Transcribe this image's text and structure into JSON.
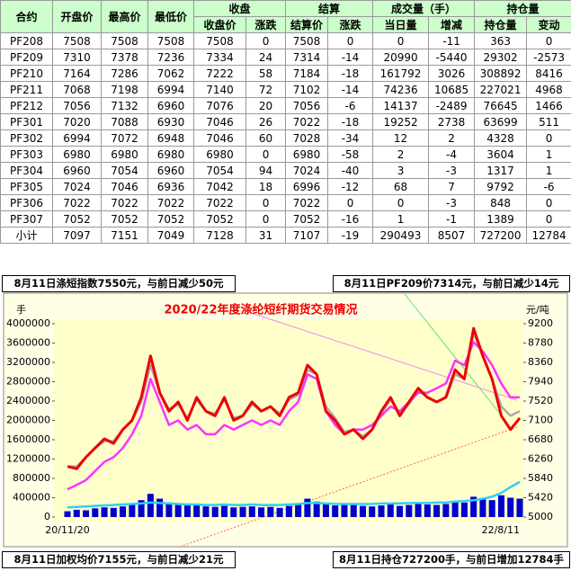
{
  "table": {
    "top": [
      "合约",
      "开盘价",
      "最高价",
      "最低价",
      "收盘",
      "结算",
      "成交量（手）",
      "持仓量"
    ],
    "sub": [
      "收盘价",
      "涨跌",
      "结算价",
      "涨跌",
      "当日量",
      "增减",
      "持仓量",
      "变动"
    ],
    "rows": [
      [
        "PF208",
        7508,
        7508,
        7508,
        7508,
        0,
        7508,
        0,
        0,
        -11,
        363,
        0
      ],
      [
        "PF209",
        7310,
        7378,
        7236,
        7334,
        24,
        7314,
        -14,
        20990,
        -5440,
        29302,
        -2573
      ],
      [
        "PF210",
        7164,
        7286,
        7062,
        7222,
        58,
        7184,
        -18,
        161792,
        3026,
        308892,
        8416
      ],
      [
        "PF211",
        7068,
        7198,
        6994,
        7140,
        72,
        7102,
        -14,
        74236,
        10685,
        227021,
        4968
      ],
      [
        "PF212",
        7056,
        7132,
        6960,
        7076,
        20,
        7056,
        -6,
        14137,
        -2489,
        76645,
        1466
      ],
      [
        "PF301",
        7020,
        7088,
        6930,
        7046,
        26,
        7022,
        -18,
        19252,
        2738,
        63699,
        511
      ],
      [
        "PF302",
        6994,
        7072,
        6948,
        7046,
        60,
        7028,
        -34,
        12,
        2,
        4328,
        0
      ],
      [
        "PF303",
        6980,
        6980,
        6980,
        6980,
        0,
        6980,
        -58,
        2,
        -4,
        3604,
        1
      ],
      [
        "PF304",
        6960,
        7054,
        6960,
        7054,
        94,
        7024,
        -40,
        3,
        -3,
        1317,
        1
      ],
      [
        "PF305",
        7024,
        7046,
        6936,
        7042,
        18,
        6996,
        -12,
        68,
        7,
        9792,
        -6
      ],
      [
        "PF306",
        7022,
        7022,
        7022,
        7022,
        0,
        7022,
        0,
        0,
        -3,
        848,
        0
      ],
      [
        "PF307",
        7052,
        7052,
        7052,
        7052,
        0,
        7052,
        -16,
        1,
        -1,
        1389,
        0
      ],
      [
        "小计",
        7097,
        7151,
        7049,
        7128,
        31,
        7107,
        -19,
        290493,
        8507,
        727200,
        12784
      ]
    ]
  },
  "notes": [
    "8月11日涤短指数7550元，与前日减少50元",
    "8月11日PF209价7314元，与前日减少14元",
    "8月11日加权均价7155元，与前日减少21元",
    "8月11日持仓727200手，与前日增加12784手"
  ],
  "chart_data": {
    "type": "line",
    "title": "2020/22年度涤纶短纤期货交易情况",
    "ylabel": "手",
    "y2label": "元/吨",
    "categories": [
      "20/11/20",
      null,
      null,
      null,
      null,
      null,
      null,
      null,
      null,
      null,
      null,
      null,
      null,
      null,
      null,
      null,
      null,
      null,
      null,
      null,
      null,
      null,
      null,
      null,
      null,
      null,
      null,
      null,
      null,
      null,
      null,
      null,
      null,
      null,
      null,
      null,
      null,
      null,
      null,
      null,
      null,
      null,
      null,
      null,
      null,
      null,
      null,
      null,
      null,
      "22/8/11"
    ],
    "ylim": [
      0,
      4000000
    ],
    "yticks": [
      0,
      400000,
      800000,
      1200000,
      1600000,
      2000000,
      2400000,
      2800000,
      3200000,
      3600000,
      4000000
    ],
    "y2lim": [
      5000,
      9200
    ],
    "y2ticks": [
      5000,
      5420,
      5840,
      6260,
      6680,
      7100,
      7520,
      7940,
      8360,
      8780,
      9200
    ],
    "series": [
      {
        "type": "bar",
        "color": "#0000cc",
        "values": [
          120000,
          150000,
          140000,
          180000,
          200000,
          190000,
          220000,
          260000,
          350000,
          480000,
          380000,
          300000,
          260000,
          240000,
          250000,
          220000,
          210000,
          230000,
          200000,
          210000,
          220000,
          200000,
          210000,
          190000,
          230000,
          260000,
          380000,
          320000,
          260000,
          240000,
          280000,
          250000,
          230000,
          220000,
          240000,
          260000,
          230000,
          250000,
          280000,
          260000,
          250000,
          270000,
          330000,
          300000,
          420000,
          380000,
          350000,
          450000,
          400000,
          380000
        ]
      },
      {
        "color": "#33ccff",
        "values": [
          200000,
          210000,
          220000,
          230000,
          240000,
          250000,
          260000,
          270000,
          280000,
          300000,
          290000,
          280000,
          270000,
          260000,
          260000,
          250000,
          250000,
          260000,
          250000,
          250000,
          260000,
          250000,
          250000,
          250000,
          260000,
          270000,
          290000,
          290000,
          280000,
          270000,
          270000,
          270000,
          270000,
          270000,
          280000,
          280000,
          280000,
          290000,
          290000,
          290000,
          300000,
          300000,
          320000,
          330000,
          350000,
          380000,
          420000,
          500000,
          620000,
          727200
        ]
      },
      {
        "axis": "y2",
        "color": "#aaaaaa",
        "values": [
          6100,
          6100,
          6300,
          6500,
          6650,
          6650,
          6900,
          7100,
          7500,
          8300,
          7700,
          7350,
          7450,
          7150,
          7550,
          7300,
          7250,
          7550,
          7150,
          7200,
          7450,
          7300,
          7400,
          7250,
          7550,
          7650,
          8200,
          8100,
          7400,
          7150,
          6850,
          6900,
          6750,
          6900,
          7250,
          7550,
          7250,
          7450,
          7750,
          7600,
          7500,
          7600,
          8100,
          8000,
          9000,
          8500,
          8000,
          7400,
          7200,
          7300
        ]
      },
      {
        "axis": "y2",
        "color": "#ff33ff",
        "values": [
          5600,
          5700,
          5800,
          6000,
          6200,
          6300,
          6500,
          6800,
          7200,
          8000,
          7500,
          7000,
          7100,
          6900,
          7000,
          6800,
          6800,
          7000,
          6900,
          7000,
          7100,
          7000,
          7100,
          7000,
          7300,
          7500,
          8100,
          8000,
          7300,
          7000,
          6800,
          6900,
          6900,
          7000,
          7200,
          7400,
          7300,
          7500,
          7700,
          7700,
          7800,
          7900,
          8400,
          8300,
          8800,
          8600,
          8300,
          7900,
          7600,
          7600
        ]
      },
      {
        "axis": "y2",
        "color": "#ee0000",
        "values": [
          6100,
          6050,
          6300,
          6500,
          6700,
          6600,
          6900,
          7100,
          7600,
          8500,
          7700,
          7300,
          7500,
          7100,
          7600,
          7300,
          7200,
          7600,
          7100,
          7200,
          7500,
          7300,
          7400,
          7200,
          7600,
          7700,
          8300,
          8100,
          7300,
          7100,
          6800,
          6900,
          6700,
          6900,
          7300,
          7600,
          7200,
          7500,
          7800,
          7600,
          7500,
          7600,
          8200,
          8000,
          9100,
          8500,
          8000,
          7200,
          6900,
          7150
        ]
      }
    ]
  }
}
